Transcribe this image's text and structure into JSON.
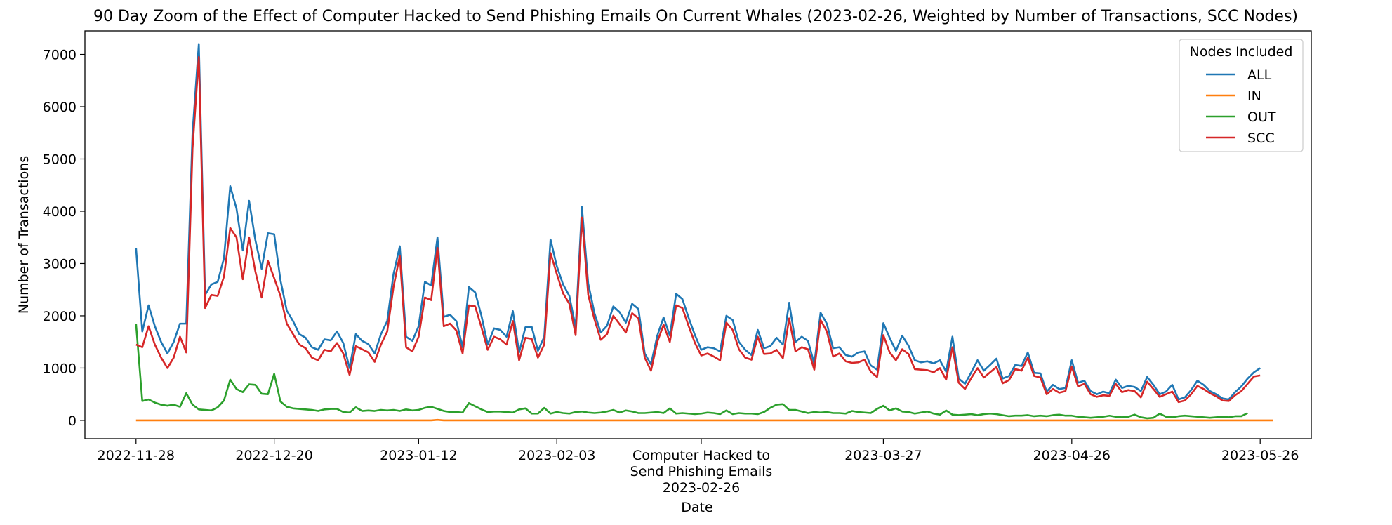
{
  "chart_data": {
    "type": "line",
    "title": "90 Day Zoom of the Effect of Computer Hacked to Send Phishing Emails On Current Whales (2023-02-26, Weighted by Number of Transactions, SCC Nodes)",
    "xlabel": "Date",
    "ylabel": "Number of Transactions",
    "x_range": [
      "2022-11-28",
      "2023-05-26"
    ],
    "ylim": [
      -350,
      7450
    ],
    "y_ticks": [
      0,
      1000,
      2000,
      3000,
      4000,
      5000,
      6000,
      7000
    ],
    "x_ticks": [
      {
        "date": "2022-11-28",
        "label": "2022-11-28"
      },
      {
        "date": "2022-12-20",
        "label": "2022-12-20"
      },
      {
        "date": "2023-01-12",
        "label": "2023-01-12"
      },
      {
        "date": "2023-02-03",
        "label": "2023-02-03"
      },
      {
        "date": "2023-03-27",
        "label": "2023-03-27"
      },
      {
        "date": "2023-04-26",
        "label": "2023-04-26"
      },
      {
        "date": "2023-05-26",
        "label": "2023-05-26"
      }
    ],
    "event": {
      "date": "2023-02-26",
      "label_lines": [
        "Computer Hacked to",
        "Send Phishing Emails",
        "2023-02-26"
      ]
    },
    "grid": false,
    "legend": {
      "title": "Nodes Included",
      "placement": "top-right"
    },
    "x_start": "2022-11-28",
    "series": [
      {
        "name": "ALL",
        "color": "#1f77b4",
        "values": [
          3300,
          1700,
          2200,
          1800,
          1500,
          1280,
          1500,
          1850,
          1850,
          5500,
          7200,
          2400,
          2600,
          2650,
          3100,
          4480,
          4050,
          3250,
          4200,
          3450,
          2900,
          3580,
          3560,
          2680,
          2100,
          1900,
          1650,
          1580,
          1400,
          1350,
          1550,
          1530,
          1700,
          1480,
          1000,
          1650,
          1520,
          1460,
          1280,
          1650,
          1900,
          2800,
          3330,
          1600,
          1520,
          1800,
          2650,
          2580,
          3500,
          1980,
          2020,
          1900,
          1400,
          2550,
          2450,
          2000,
          1450,
          1760,
          1730,
          1600,
          2090,
          1300,
          1780,
          1790,
          1330,
          1600,
          3460,
          2950,
          2600,
          2380,
          1780,
          4080,
          2620,
          2050,
          1680,
          1810,
          2180,
          2070,
          1870,
          2230,
          2130,
          1280,
          1070,
          1620,
          1970,
          1620,
          2420,
          2320,
          1960,
          1630,
          1350,
          1400,
          1380,
          1320,
          2000,
          1920,
          1500,
          1350,
          1250,
          1730,
          1380,
          1420,
          1580,
          1450,
          2250,
          1500,
          1600,
          1520,
          1080,
          2060,
          1850,
          1380,
          1400,
          1250,
          1220,
          1300,
          1320,
          1050,
          970,
          1860,
          1580,
          1330,
          1620,
          1430,
          1150,
          1110,
          1130,
          1090,
          1150,
          930,
          1600,
          800,
          700,
          920,
          1150,
          950,
          1060,
          1180,
          800,
          850,
          1060,
          1040,
          1300,
          910,
          900,
          550,
          680,
          600,
          620,
          1150,
          720,
          760,
          560,
          500,
          550,
          520,
          780,
          620,
          660,
          640,
          560,
          830,
          680,
          500,
          550,
          680,
          400,
          440,
          580,
          760,
          680,
          560,
          500,
          420,
          400,
          540,
          650,
          800,
          920,
          1000
        ]
      },
      {
        "name": "IN",
        "color": "#ff7f0e",
        "values": [
          0,
          0,
          0,
          0,
          0,
          0,
          0,
          0,
          0,
          0,
          0,
          0,
          0,
          0,
          0,
          0,
          0,
          0,
          0,
          0,
          0,
          0,
          0,
          0,
          0,
          0,
          0,
          0,
          0,
          0,
          0,
          0,
          0,
          0,
          0,
          0,
          0,
          0,
          0,
          0,
          0,
          0,
          0,
          0,
          0,
          0,
          0,
          0,
          10,
          0,
          0,
          0,
          0,
          0,
          0,
          0,
          0,
          0,
          0,
          0,
          0,
          0,
          0,
          0,
          0,
          0,
          0,
          0,
          0,
          0,
          0,
          0,
          0,
          0,
          0,
          0,
          0,
          0,
          0,
          0,
          0,
          0,
          0,
          0,
          0,
          0,
          0,
          0,
          0,
          0,
          0,
          0,
          0,
          0,
          0,
          0,
          0,
          0,
          0,
          0,
          0,
          0,
          0,
          0,
          0,
          0,
          0,
          0,
          0,
          0,
          0,
          0,
          0,
          0,
          0,
          0,
          0,
          0,
          0,
          0,
          0,
          0,
          0,
          0,
          0,
          0,
          0,
          0,
          0,
          0,
          0,
          0,
          0,
          0,
          0,
          0,
          0,
          0,
          0,
          0,
          0,
          0,
          0,
          0,
          0,
          0,
          0,
          0,
          0,
          0,
          0,
          0,
          0,
          0,
          0,
          0,
          0,
          0,
          0,
          0,
          0,
          0,
          0,
          0,
          0,
          0,
          0,
          0,
          0,
          0,
          0,
          0,
          0,
          0,
          0,
          0,
          0,
          0,
          0,
          0,
          0,
          0
        ]
      },
      {
        "name": "OUT",
        "color": "#2ca02c",
        "values": [
          1850,
          370,
          400,
          340,
          300,
          280,
          300,
          260,
          520,
          300,
          210,
          200,
          190,
          250,
          380,
          780,
          600,
          540,
          690,
          680,
          510,
          500,
          890,
          360,
          260,
          230,
          220,
          210,
          200,
          180,
          210,
          220,
          220,
          160,
          150,
          250,
          180,
          190,
          180,
          200,
          190,
          200,
          180,
          210,
          190,
          200,
          240,
          260,
          220,
          180,
          160,
          160,
          150,
          330,
          270,
          210,
          160,
          170,
          170,
          160,
          150,
          210,
          230,
          130,
          130,
          240,
          130,
          160,
          140,
          130,
          160,
          170,
          150,
          140,
          150,
          170,
          200,
          150,
          190,
          170,
          140,
          140,
          150,
          160,
          140,
          230,
          130,
          140,
          130,
          120,
          130,
          150,
          140,
          120,
          190,
          120,
          140,
          130,
          130,
          120,
          160,
          240,
          300,
          310,
          200,
          200,
          170,
          140,
          160,
          150,
          160,
          140,
          140,
          130,
          180,
          160,
          150,
          140,
          220,
          280,
          190,
          230,
          170,
          160,
          130,
          150,
          170,
          130,
          110,
          190,
          110,
          100,
          110,
          120,
          100,
          120,
          130,
          120,
          100,
          80,
          90,
          90,
          100,
          80,
          90,
          80,
          100,
          110,
          90,
          90,
          70,
          60,
          50,
          60,
          70,
          90,
          70,
          60,
          70,
          110,
          60,
          40,
          50,
          130,
          70,
          60,
          80,
          90,
          80,
          70,
          60,
          50,
          60,
          70,
          60,
          80,
          80,
          140
        ]
      },
      {
        "name": "SCC",
        "color": "#d62728",
        "values": [
          1450,
          1400,
          1800,
          1450,
          1200,
          1000,
          1200,
          1600,
          1300,
          5200,
          6950,
          2150,
          2400,
          2380,
          2750,
          3680,
          3500,
          2700,
          3500,
          2850,
          2350,
          3050,
          2720,
          2380,
          1850,
          1650,
          1450,
          1380,
          1200,
          1150,
          1350,
          1320,
          1480,
          1280,
          870,
          1420,
          1360,
          1300,
          1120,
          1450,
          1700,
          2550,
          3150,
          1400,
          1320,
          1600,
          2350,
          2300,
          3300,
          1800,
          1850,
          1720,
          1280,
          2200,
          2180,
          1780,
          1350,
          1600,
          1550,
          1450,
          1900,
          1150,
          1580,
          1560,
          1200,
          1450,
          3200,
          2800,
          2430,
          2230,
          1630,
          3880,
          2400,
          1930,
          1540,
          1650,
          2000,
          1840,
          1680,
          2050,
          1950,
          1200,
          950,
          1500,
          1830,
          1500,
          2200,
          2150,
          1800,
          1480,
          1240,
          1280,
          1220,
          1150,
          1870,
          1730,
          1360,
          1200,
          1160,
          1600,
          1270,
          1280,
          1350,
          1190,
          1950,
          1320,
          1400,
          1360,
          970,
          1920,
          1700,
          1220,
          1280,
          1130,
          1100,
          1110,
          1160,
          930,
          830,
          1630,
          1300,
          1150,
          1360,
          1270,
          980,
          970,
          960,
          920,
          1000,
          780,
          1400,
          720,
          600,
          810,
          1000,
          820,
          920,
          1020,
          710,
          770,
          980,
          950,
          1200,
          850,
          820,
          500,
          600,
          530,
          560,
          1030,
          650,
          700,
          500,
          450,
          480,
          470,
          700,
          540,
          580,
          560,
          440,
          740,
          600,
          450,
          500,
          550,
          350,
          380,
          500,
          660,
          600,
          520,
          460,
          380,
          370,
          480,
          560,
          700,
          840,
          860
        ]
      }
    ]
  }
}
